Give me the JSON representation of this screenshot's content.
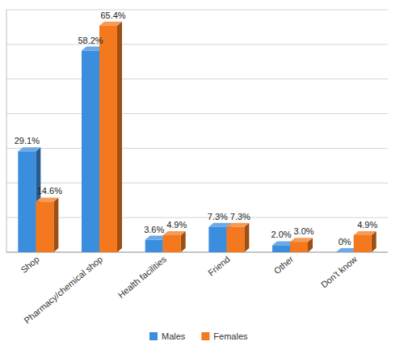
{
  "chart_data": {
    "type": "bar",
    "categories": [
      "Shop",
      "Pharmacy/chemical shop",
      "Health facilities",
      "Friend",
      "Other",
      "Don't know"
    ],
    "series": [
      {
        "name": "Males",
        "color": "#3b8ede",
        "values": [
          29.1,
          58.2,
          3.6,
          7.3,
          2.0,
          0
        ],
        "value_labels": [
          "29.1%",
          "58.2%",
          "3.6%",
          "7.3%",
          "2.0%",
          "0%"
        ]
      },
      {
        "name": "Females",
        "color": "#f4781e",
        "values": [
          14.6,
          65.4,
          4.9,
          7.3,
          3.0,
          4.9
        ],
        "value_labels": [
          "14.6%",
          "65.4%",
          "4.9%",
          "7.3%",
          "3.0%",
          "4.9%"
        ]
      }
    ],
    "ylim": [
      0,
      70
    ],
    "yticks": [
      0,
      10,
      20,
      30,
      40,
      50,
      60,
      70
    ],
    "grid": true,
    "tick_labels": false,
    "data_labels": true,
    "legend": "bottom"
  }
}
